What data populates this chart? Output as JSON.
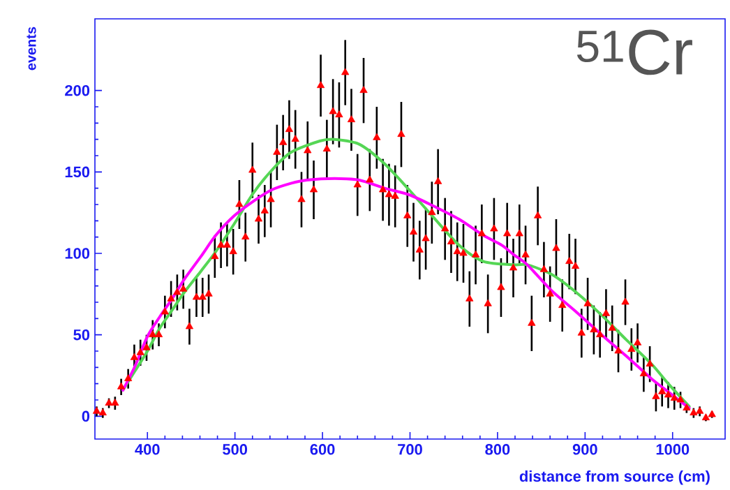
{
  "chart_data": {
    "type": "scatter",
    "xlabel": "distance from source (cm)",
    "ylabel": "events",
    "xlim": [
      340,
      1060
    ],
    "ylim": [
      -14,
      244
    ],
    "xticks": [
      400,
      500,
      600,
      700,
      800,
      900,
      1000
    ],
    "yticks": [
      0,
      50,
      100,
      150,
      200
    ],
    "annotations": [
      "$^{51}$Cr"
    ],
    "series": [
      {
        "color": "#ff0000",
        "marker": "triangle",
        "x": [
          342,
          349,
          356,
          363,
          370,
          378,
          385,
          392,
          399,
          406,
          413,
          420,
          427,
          434,
          441,
          448,
          456,
          463,
          470,
          477,
          484,
          491,
          498,
          505,
          512,
          520,
          527,
          534,
          541,
          548,
          555,
          562,
          569,
          576,
          583,
          590,
          598,
          605,
          612,
          619,
          626,
          633,
          640,
          647,
          654,
          662,
          669,
          676,
          683,
          690,
          697,
          704,
          711,
          718,
          725,
          732,
          740,
          747,
          754,
          761,
          768,
          775,
          782,
          789,
          796,
          804,
          811,
          818,
          825,
          832,
          839,
          846,
          853,
          860,
          867,
          874,
          882,
          889,
          896,
          903,
          910,
          917,
          924,
          931,
          938,
          946,
          953,
          960,
          967,
          974,
          981,
          988,
          995,
          1002,
          1009,
          1016,
          1024,
          1031,
          1038,
          1045
        ],
        "values": [
          3,
          2,
          8,
          8,
          18,
          23,
          36,
          39,
          42,
          50,
          50,
          64,
          72,
          76,
          78,
          55,
          73,
          73,
          75,
          98,
          105,
          105,
          101,
          130,
          110,
          151,
          121,
          126,
          133,
          162,
          168,
          176,
          170,
          133,
          163,
          139,
          203,
          164,
          187,
          185,
          211,
          182,
          142,
          200,
          145,
          171,
          139,
          136,
          135,
          173,
          123,
          113,
          102,
          109,
          125,
          144,
          115,
          107,
          101,
          100,
          72,
          99,
          112,
          69,
          115,
          79,
          112,
          91,
          112,
          99,
          57,
          123,
          90,
          75,
          103,
          68,
          95,
          92,
          51,
          69,
          53,
          50,
          63,
          54,
          40,
          70,
          41,
          45,
          26,
          32,
          12,
          15,
          13,
          11,
          10,
          5,
          2,
          3,
          -1,
          1
        ],
        "errors": [
          3,
          3,
          3,
          4,
          5,
          6,
          8,
          8,
          8,
          9,
          7,
          10,
          11,
          11,
          12,
          11,
          12,
          12,
          12,
          13,
          14,
          13,
          14,
          15,
          15,
          17,
          15,
          16,
          17,
          17,
          17,
          18,
          18,
          17,
          18,
          18,
          19,
          18,
          20,
          20,
          20,
          19,
          19,
          20,
          19,
          19,
          19,
          19,
          19,
          20,
          19,
          18,
          18,
          19,
          19,
          20,
          19,
          19,
          18,
          18,
          17,
          18,
          18,
          18,
          19,
          18,
          19,
          18,
          18,
          18,
          17,
          18,
          17,
          17,
          18,
          16,
          17,
          17,
          15,
          16,
          15,
          14,
          15,
          14,
          13,
          14,
          13,
          12,
          11,
          11,
          9,
          9,
          8,
          7,
          5,
          3,
          3,
          3,
          2,
          2
        ]
      },
      {
        "type": "line",
        "color": "#55d655",
        "marker": "none",
        "x": [
          372,
          386,
          400,
          414,
          428,
          442,
          461,
          478,
          499,
          521,
          542,
          564,
          597,
          614,
          642,
          671,
          699,
          727,
          756,
          784,
          819,
          834,
          862,
          890,
          919,
          947,
          976,
          995,
          1019
        ],
        "values": [
          16,
          28,
          40,
          54,
          65,
          76,
          89,
          101,
          118,
          137,
          151,
          162,
          169,
          170,
          167,
          155,
          139,
          122,
          105,
          95,
          93,
          93,
          87,
          76,
          62,
          47,
          32,
          20,
          6
        ]
      },
      {
        "type": "line",
        "color": "#ff00ff",
        "marker": "none",
        "x": [
          372,
          386,
          400,
          414,
          428,
          442,
          461,
          478,
          499,
          521,
          542,
          564,
          582,
          614,
          642,
          671,
          699,
          727,
          756,
          784,
          805,
          819,
          834,
          862,
          890,
          919,
          947,
          976,
          995,
          1019
        ],
        "values": [
          16,
          31,
          49,
          61,
          72,
          84,
          98,
          111,
          123,
          132,
          139,
          143,
          145,
          146,
          145,
          140,
          136,
          129,
          121,
          111,
          105,
          99,
          93,
          77,
          64,
          50,
          37,
          23,
          15,
          5
        ]
      }
    ]
  }
}
